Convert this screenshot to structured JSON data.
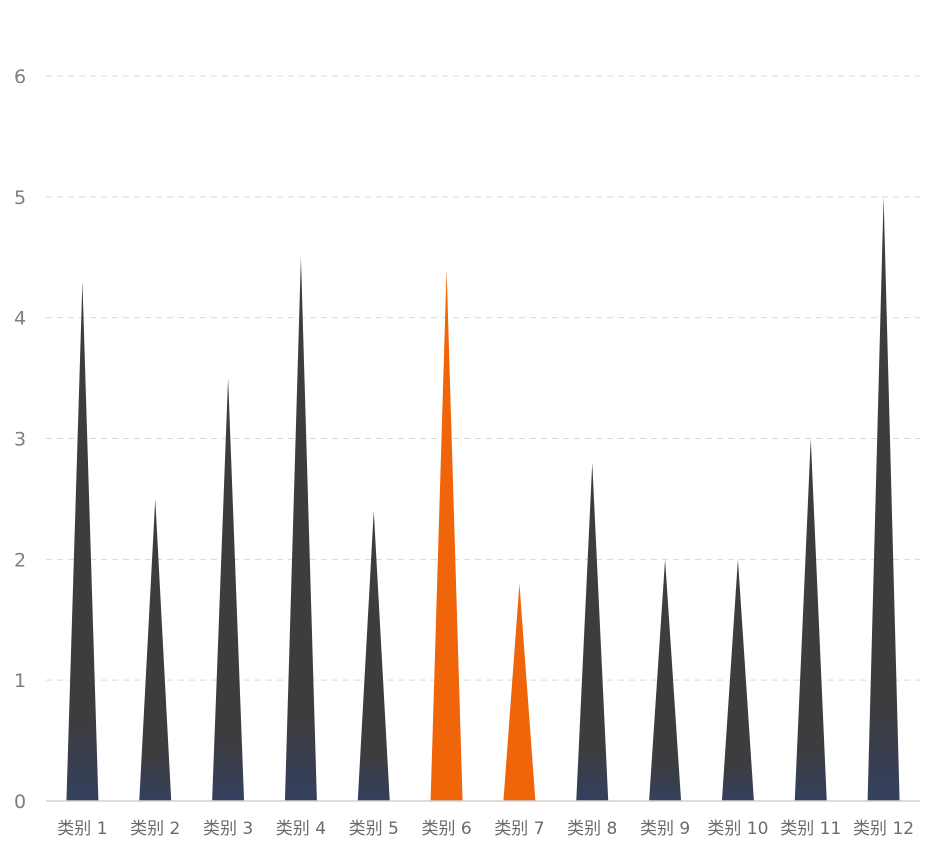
{
  "chart_data": {
    "type": "bar",
    "bar_shape": "triangle",
    "categories": [
      "类别 1",
      "类别 2",
      "类别 3",
      "类别 4",
      "类别 5",
      "类别 6",
      "类别 7",
      "类别 8",
      "类别 9",
      "类别 10",
      "类别 11",
      "类别 12"
    ],
    "values": [
      4.3,
      2.5,
      3.5,
      4.5,
      2.4,
      4.4,
      1.8,
      2.8,
      2.0,
      2.0,
      3.0,
      5.0
    ],
    "highlighted": [
      false,
      false,
      false,
      false,
      false,
      true,
      true,
      false,
      false,
      false,
      false,
      false
    ],
    "yticks": [
      "0",
      "1",
      "2",
      "3",
      "4",
      "5",
      "6"
    ],
    "ylim": [
      0,
      6
    ],
    "title": "",
    "xlabel": "",
    "ylabel": "",
    "grid": "horizontal dashed",
    "legend": "none",
    "colors": {
      "default": "#3d3d40",
      "default_base": "#34405e",
      "highlight": "#f0640a",
      "grid": "#d9d9d9",
      "axis": "#d0d0d0"
    }
  }
}
